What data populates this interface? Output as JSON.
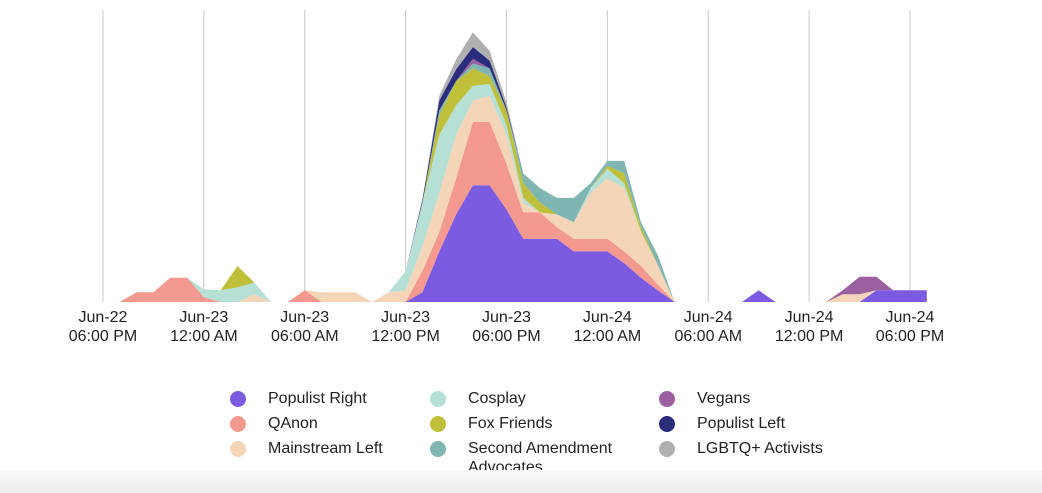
{
  "chart_data": {
    "type": "stacked_area",
    "x": [
      "Jun-22 06:00 PM",
      "Jun-22 07:00 PM",
      "Jun-22 08:00 PM",
      "Jun-22 09:00 PM",
      "Jun-22 10:00 PM",
      "Jun-22 11:00 PM",
      "Jun-23 12:00 AM",
      "Jun-23 01:00 AM",
      "Jun-23 02:00 AM",
      "Jun-23 03:00 AM",
      "Jun-23 04:00 AM",
      "Jun-23 05:00 AM",
      "Jun-23 06:00 AM",
      "Jun-23 07:00 AM",
      "Jun-23 08:00 AM",
      "Jun-23 09:00 AM",
      "Jun-23 10:00 AM",
      "Jun-23 11:00 AM",
      "Jun-23 12:00 PM",
      "Jun-23 01:00 PM",
      "Jun-23 02:00 PM",
      "Jun-23 03:00 PM",
      "Jun-23 04:00 PM",
      "Jun-23 05:00 PM",
      "Jun-23 06:00 PM",
      "Jun-23 07:00 PM",
      "Jun-23 08:00 PM",
      "Jun-23 09:00 PM",
      "Jun-23 10:00 PM",
      "Jun-23 11:00 PM",
      "Jun-24 12:00 AM",
      "Jun-24 01:00 AM",
      "Jun-24 02:00 AM",
      "Jun-24 03:00 AM",
      "Jun-24 04:00 AM",
      "Jun-24 05:00 AM",
      "Jun-24 06:00 AM",
      "Jun-24 07:00 AM",
      "Jun-24 08:00 AM",
      "Jun-24 09:00 AM",
      "Jun-24 10:00 AM",
      "Jun-24 11:00 AM",
      "Jun-24 12:00 PM",
      "Jun-24 01:00 PM",
      "Jun-24 02:00 PM",
      "Jun-24 03:00 PM",
      "Jun-24 04:00 PM",
      "Jun-24 05:00 PM",
      "Jun-24 06:00 PM",
      "Jun-24 07:00 PM"
    ],
    "xticks": [
      {
        "value": "Jun-22 06:00 PM",
        "label": [
          "Jun-22",
          "06:00 PM"
        ]
      },
      {
        "value": "Jun-23 12:00 AM",
        "label": [
          "Jun-23",
          "12:00 AM"
        ]
      },
      {
        "value": "Jun-23 06:00 AM",
        "label": [
          "Jun-23",
          "06:00 AM"
        ]
      },
      {
        "value": "Jun-23 12:00 PM",
        "label": [
          "Jun-23",
          "12:00 PM"
        ]
      },
      {
        "value": "Jun-23 06:00 PM",
        "label": [
          "Jun-23",
          "06:00 PM"
        ]
      },
      {
        "value": "Jun-24 12:00 AM",
        "label": [
          "Jun-24",
          "12:00 AM"
        ]
      },
      {
        "value": "Jun-24 06:00 AM",
        "label": [
          "Jun-24",
          "06:00 AM"
        ]
      },
      {
        "value": "Jun-24 12:00 PM",
        "label": [
          "Jun-24",
          "12:00 PM"
        ]
      },
      {
        "value": "Jun-24 06:00 PM",
        "label": [
          "Jun-24",
          "06:00 PM"
        ]
      }
    ],
    "ylim": [
      0,
      300
    ],
    "grid": true,
    "series": [
      {
        "name": "Populist Right",
        "color": "#7b5ce0",
        "values": [
          0,
          0,
          0,
          0,
          0,
          0,
          0,
          0,
          0,
          0,
          0,
          0,
          0,
          0,
          0,
          0,
          0,
          0,
          0,
          10,
          52,
          90,
          120,
          120,
          95,
          65,
          65,
          65,
          52,
          52,
          52,
          40,
          25,
          12,
          0,
          0,
          0,
          0,
          0,
          12,
          0,
          0,
          0,
          0,
          0,
          0,
          12,
          12,
          12,
          12
        ]
      },
      {
        "name": "QAnon",
        "color": "#f4998f",
        "values": [
          0,
          0,
          10,
          10,
          25,
          25,
          5,
          0,
          0,
          0,
          0,
          0,
          12,
          0,
          0,
          0,
          0,
          0,
          0,
          22,
          20,
          37,
          65,
          65,
          47,
          27,
          27,
          12,
          13,
          13,
          13,
          12,
          12,
          6,
          0,
          0,
          0,
          0,
          0,
          0,
          0,
          0,
          0,
          0,
          0,
          0,
          0,
          0,
          0,
          0
        ]
      },
      {
        "name": "Mainstream Left",
        "color": "#f5d5b8",
        "values": [
          0,
          0,
          0,
          0,
          0,
          0,
          0,
          0,
          0,
          8,
          0,
          0,
          0,
          10,
          10,
          10,
          0,
          10,
          12,
          25,
          40,
          45,
          22,
          27,
          30,
          10,
          0,
          13,
          17,
          47,
          62,
          65,
          35,
          20,
          0,
          0,
          0,
          0,
          0,
          0,
          0,
          0,
          0,
          0,
          8,
          8,
          0,
          0,
          0,
          0
        ]
      },
      {
        "name": "Cosplay",
        "color": "#b6e0d6",
        "values": [
          0,
          0,
          0,
          0,
          0,
          0,
          8,
          12,
          15,
          12,
          0,
          0,
          0,
          0,
          0,
          0,
          0,
          0,
          20,
          45,
          60,
          30,
          15,
          12,
          10,
          5,
          0,
          0,
          0,
          5,
          10,
          5,
          0,
          0,
          0,
          0,
          0,
          0,
          0,
          0,
          0,
          0,
          0,
          0,
          0,
          0,
          0,
          0,
          0,
          0
        ]
      },
      {
        "name": "Fox Friends",
        "color": "#bfbf3a",
        "values": [
          0,
          0,
          0,
          0,
          0,
          0,
          0,
          0,
          22,
          0,
          0,
          0,
          0,
          0,
          0,
          0,
          0,
          0,
          0,
          0,
          20,
          25,
          18,
          8,
          15,
          15,
          10,
          0,
          0,
          0,
          3,
          10,
          5,
          0,
          0,
          0,
          0,
          0,
          0,
          0,
          0,
          0,
          0,
          0,
          0,
          0,
          0,
          0,
          0,
          0
        ]
      },
      {
        "name": "Second Amendment Advocates",
        "color": "#7fb6b2",
        "values": [
          0,
          0,
          0,
          0,
          0,
          0,
          0,
          0,
          0,
          0,
          0,
          0,
          0,
          0,
          0,
          0,
          0,
          0,
          0,
          0,
          5,
          0,
          5,
          8,
          0,
          10,
          15,
          17,
          25,
          5,
          5,
          13,
          5,
          10,
          0,
          0,
          0,
          0,
          0,
          0,
          0,
          0,
          0,
          0,
          0,
          0,
          0,
          0,
          0,
          0
        ]
      },
      {
        "name": "Vegans",
        "color": "#9a60a0",
        "values": [
          0,
          0,
          0,
          0,
          0,
          0,
          0,
          0,
          0,
          0,
          0,
          0,
          0,
          0,
          0,
          0,
          0,
          0,
          0,
          0,
          0,
          0,
          5,
          0,
          0,
          0,
          0,
          0,
          0,
          0,
          0,
          0,
          0,
          0,
          0,
          0,
          0,
          0,
          0,
          0,
          0,
          0,
          0,
          0,
          4,
          18,
          14,
          0,
          0,
          0
        ]
      },
      {
        "name": "Populist Left",
        "color": "#2a2d7c",
        "values": [
          0,
          0,
          0,
          0,
          0,
          0,
          0,
          0,
          0,
          0,
          0,
          0,
          0,
          0,
          0,
          0,
          0,
          0,
          0,
          3,
          10,
          12,
          12,
          8,
          3,
          0,
          0,
          0,
          0,
          0,
          0,
          0,
          0,
          0,
          0,
          0,
          0,
          0,
          0,
          0,
          0,
          0,
          0,
          0,
          0,
          0,
          0,
          0,
          0,
          0
        ]
      },
      {
        "name": "LGBTQ+ Activists",
        "color": "#b0b0b0",
        "values": [
          0,
          0,
          0,
          0,
          0,
          0,
          0,
          0,
          0,
          0,
          0,
          0,
          0,
          0,
          0,
          0,
          0,
          0,
          0,
          0,
          5,
          10,
          15,
          10,
          5,
          0,
          0,
          0,
          0,
          0,
          0,
          0,
          0,
          0,
          0,
          0,
          0,
          0,
          0,
          0,
          0,
          0,
          0,
          0,
          0,
          0,
          0,
          0,
          0,
          0
        ]
      }
    ]
  }
}
